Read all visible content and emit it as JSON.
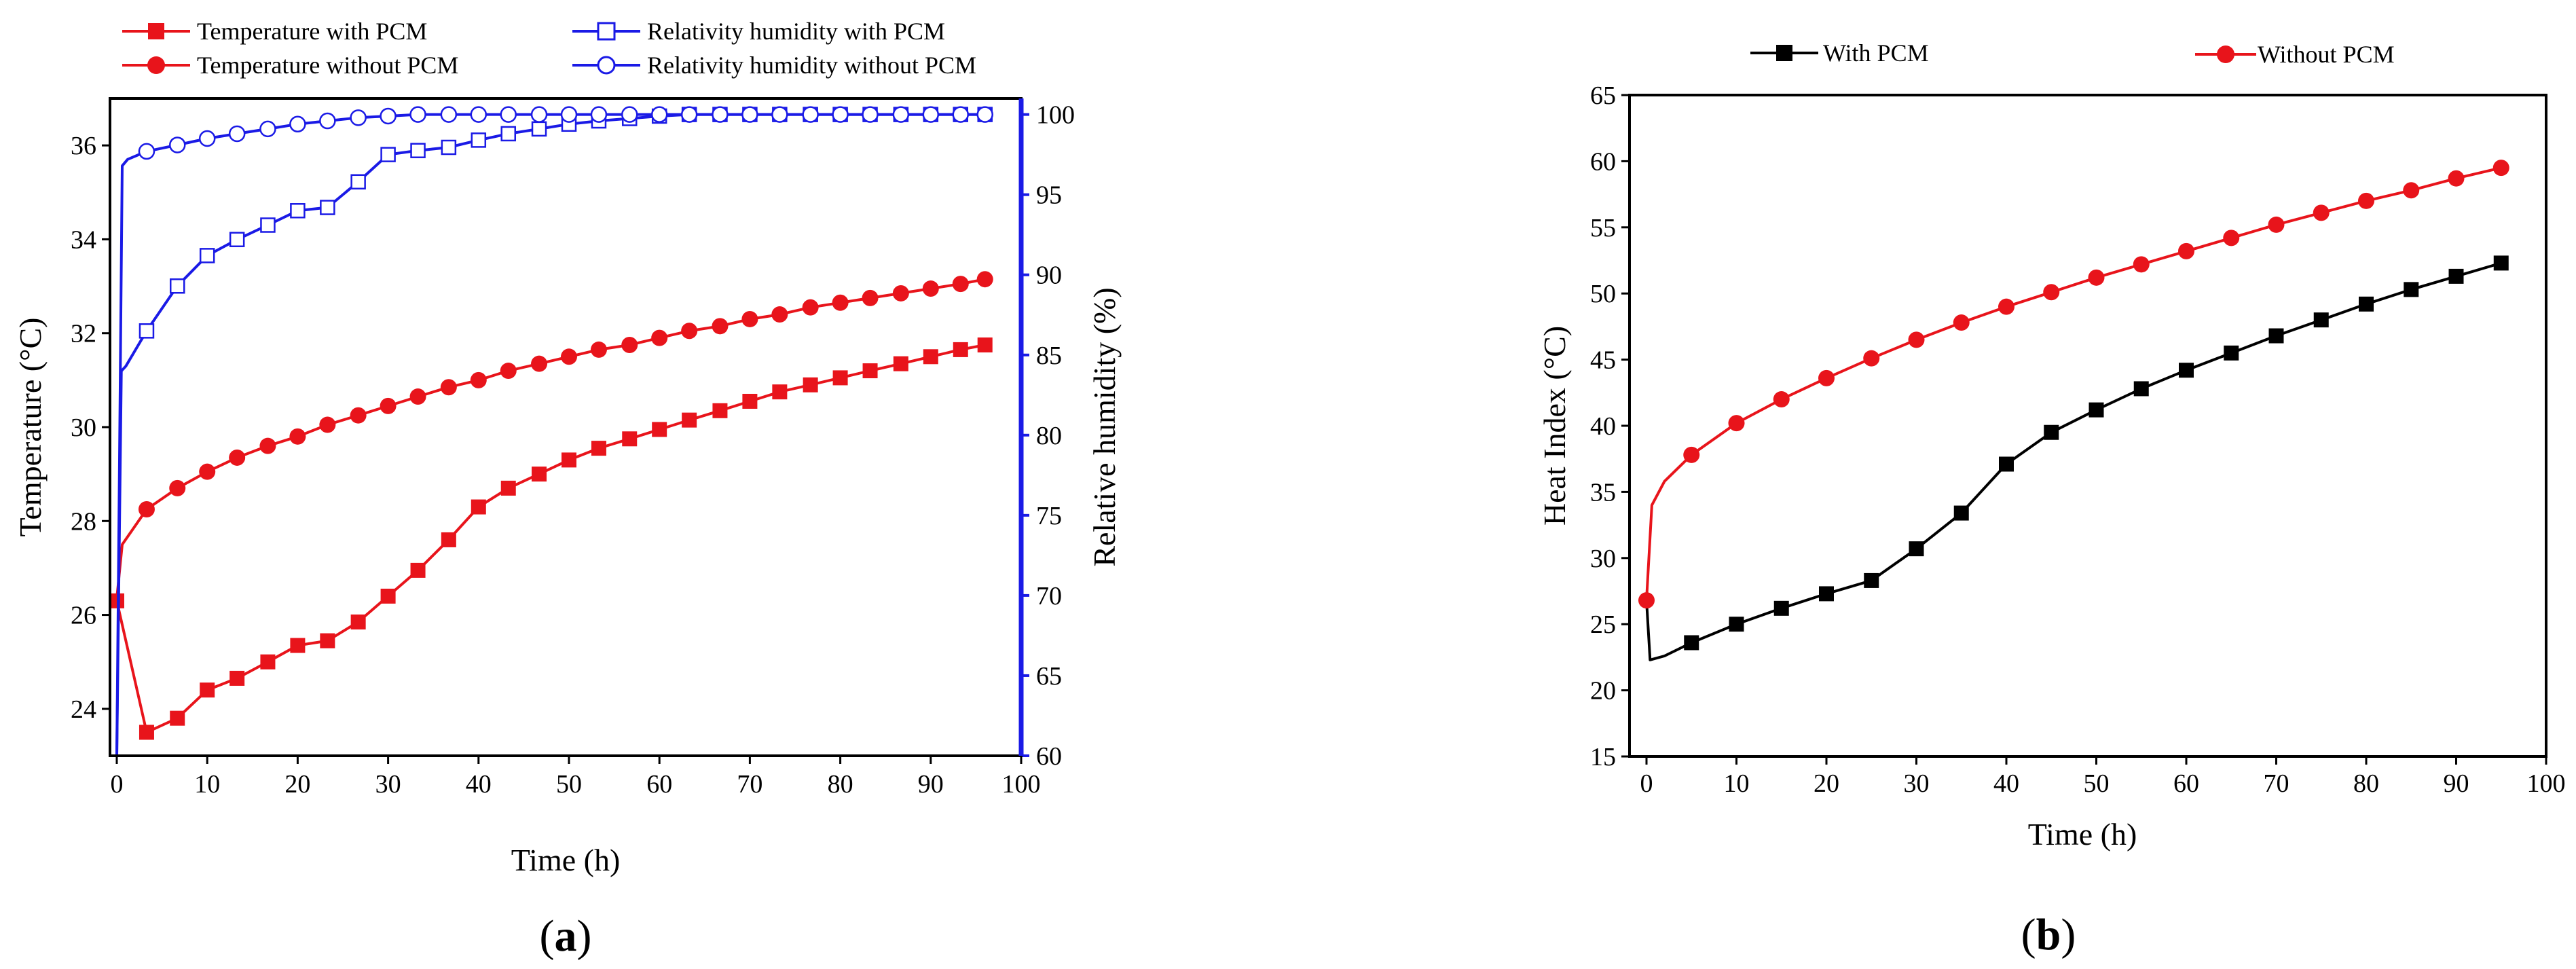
{
  "chart_data": [
    {
      "type": "line",
      "panel_label": "(a)",
      "panel_letter": "a",
      "xlabel": "Time (h)",
      "ylabel": "Temperature (°C)",
      "y2label": "Relative humidity (%)",
      "xlim": [
        0,
        100
      ],
      "ylim": [
        23,
        37
      ],
      "y2lim": [
        60,
        101
      ],
      "xticks": [
        0,
        10,
        20,
        30,
        40,
        50,
        60,
        70,
        80,
        90,
        100
      ],
      "yticks": [
        24,
        26,
        28,
        30,
        32,
        34,
        36
      ],
      "y2ticks": [
        60,
        65,
        70,
        75,
        80,
        85,
        90,
        95,
        100
      ],
      "grid": false,
      "legend_position": "top",
      "series": [
        {
          "name": "Temperature with PCM",
          "axis": "left",
          "color": "#e8141b",
          "marker": "filled-square",
          "x": [
            0,
            3.3,
            6.7,
            10,
            13.3,
            16.7,
            20,
            23.3,
            26.7,
            30,
            33.3,
            36.7,
            40,
            43.3,
            46.7,
            50,
            53.3,
            56.7,
            60,
            63.3,
            66.7,
            70,
            73.3,
            76.7,
            80,
            83.3,
            86.7,
            90,
            93.3,
            96
          ],
          "y": [
            26.3,
            23.5,
            23.8,
            24.4,
            24.65,
            25.0,
            25.35,
            25.45,
            25.85,
            26.4,
            26.95,
            27.6,
            28.3,
            28.7,
            29.0,
            29.3,
            29.55,
            29.75,
            29.95,
            30.15,
            30.35,
            30.55,
            30.75,
            30.9,
            31.05,
            31.2,
            31.35,
            31.5,
            31.65,
            31.75
          ]
        },
        {
          "name": "Temperature without PCM",
          "axis": "left",
          "color": "#e8141b",
          "marker": "filled-circle",
          "x": [
            0,
            0.6,
            3.3,
            6.7,
            10,
            13.3,
            16.7,
            20,
            23.3,
            26.7,
            30,
            33.3,
            36.7,
            40,
            43.3,
            46.7,
            50,
            53.3,
            56.7,
            60,
            63.3,
            66.7,
            70,
            73.3,
            76.7,
            80,
            83.3,
            86.7,
            90,
            93.3,
            96
          ],
          "y": [
            26.35,
            27.5,
            28.25,
            28.7,
            29.05,
            29.35,
            29.6,
            29.8,
            30.05,
            30.25,
            30.45,
            30.65,
            30.85,
            31.0,
            31.2,
            31.35,
            31.5,
            31.65,
            31.75,
            31.9,
            32.05,
            32.15,
            32.3,
            32.4,
            32.55,
            32.65,
            32.75,
            32.85,
            32.95,
            33.05,
            33.15
          ],
          "marker_from_index": 2
        },
        {
          "name": "Relativity humidity with PCM",
          "axis": "right",
          "color": "#1a1ae6",
          "marker": "open-square",
          "x": [
            0,
            0.5,
            1.0,
            3.3,
            6.7,
            10,
            13.3,
            16.7,
            20,
            23.3,
            26.7,
            30,
            33.3,
            36.7,
            40,
            43.3,
            46.7,
            50,
            53.3,
            56.7,
            60,
            63.3,
            66.7,
            70,
            73.3,
            76.7,
            80,
            83.3,
            86.7,
            90,
            93.3,
            96
          ],
          "y": [
            60,
            84,
            84.3,
            86.5,
            89.3,
            91.2,
            92.2,
            93.1,
            94.0,
            94.2,
            95.8,
            97.5,
            97.75,
            97.95,
            98.4,
            98.8,
            99.1,
            99.4,
            99.6,
            99.75,
            99.9,
            100,
            100,
            100,
            100,
            100,
            100,
            100,
            100,
            100,
            100,
            100
          ],
          "marker_from_index": 3
        },
        {
          "name": "Relativity humidity without PCM",
          "axis": "right",
          "color": "#1a1ae6",
          "marker": "open-circle",
          "x": [
            0,
            0.6,
            1.2,
            3.3,
            6.7,
            10,
            13.3,
            16.7,
            20,
            23.3,
            26.7,
            30,
            33.3,
            36.7,
            40,
            43.3,
            46.7,
            50,
            53.3,
            56.7,
            60,
            63.3,
            66.7,
            70,
            73.3,
            76.7,
            80,
            83.3,
            86.7,
            90,
            93.3,
            96
          ],
          "y": [
            60,
            96.8,
            97.2,
            97.7,
            98.1,
            98.5,
            98.8,
            99.1,
            99.4,
            99.6,
            99.8,
            99.9,
            100,
            100,
            100,
            100,
            100,
            100,
            100,
            100,
            100,
            100,
            100,
            100,
            100,
            100,
            100,
            100,
            100,
            100,
            100,
            100
          ],
          "marker_from_index": 3
        }
      ]
    },
    {
      "type": "line",
      "panel_label": "(b)",
      "panel_letter": "b",
      "xlabel": "Time (h)",
      "ylabel": "Heat Index (°C)",
      "xlim": [
        0,
        100
      ],
      "ylim": [
        15,
        65
      ],
      "xticks": [
        0,
        10,
        20,
        30,
        40,
        50,
        60,
        70,
        80,
        90,
        100
      ],
      "yticks": [
        15,
        20,
        25,
        30,
        35,
        40,
        45,
        50,
        55,
        60,
        65
      ],
      "grid": false,
      "legend_position": "top",
      "series": [
        {
          "name": "With PCM",
          "color": "#000000",
          "marker": "filled-square",
          "x": [
            0,
            0.4,
            2,
            5,
            10,
            15,
            20,
            25,
            30,
            35,
            40,
            45,
            50,
            55,
            60,
            65,
            70,
            75,
            80,
            85,
            90,
            95
          ],
          "y": [
            26.8,
            22.3,
            22.6,
            23.6,
            25.0,
            26.2,
            27.3,
            28.3,
            30.7,
            33.4,
            37.1,
            39.5,
            41.2,
            42.8,
            44.2,
            45.5,
            46.8,
            48.0,
            49.2,
            50.3,
            51.3,
            52.3
          ],
          "marker_x": [
            5,
            10,
            15,
            20,
            25,
            30,
            35,
            40,
            45,
            50,
            55,
            60,
            65,
            70,
            75,
            80,
            85,
            90,
            95
          ]
        },
        {
          "name": "Without PCM",
          "color": "#e8141b",
          "marker": "filled-circle",
          "x": [
            0,
            0.6,
            2,
            5,
            10,
            15,
            20,
            25,
            30,
            35,
            40,
            45,
            50,
            55,
            60,
            65,
            70,
            75,
            80,
            85,
            90,
            95
          ],
          "y": [
            26.8,
            34.0,
            35.8,
            37.8,
            40.2,
            42.0,
            43.6,
            45.1,
            46.5,
            47.8,
            49.0,
            50.1,
            51.2,
            52.2,
            53.2,
            54.2,
            55.2,
            56.1,
            57.0,
            57.8,
            58.7,
            59.5
          ],
          "marker_x": [
            0,
            5,
            10,
            15,
            20,
            25,
            30,
            35,
            40,
            45,
            50,
            55,
            60,
            65,
            70,
            75,
            80,
            85,
            90,
            95
          ]
        }
      ]
    }
  ]
}
